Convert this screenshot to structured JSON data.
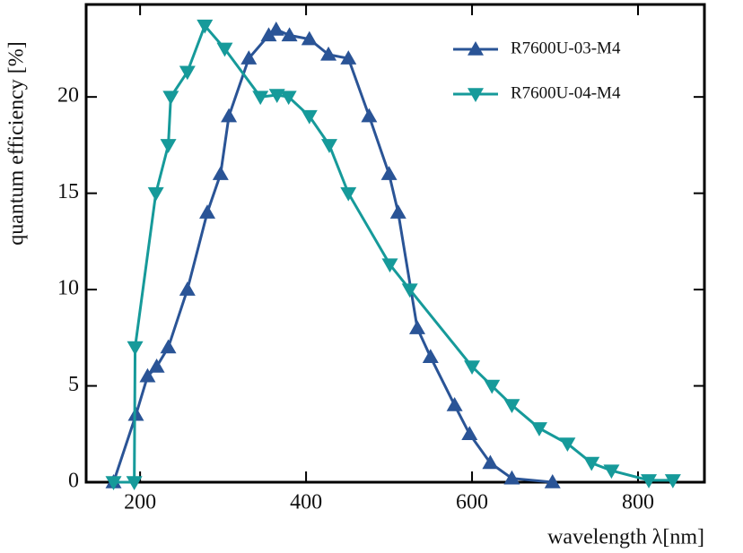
{
  "chart_data": {
    "type": "line",
    "xlabel": "wavelength λ[nm]",
    "ylabel": "quantum efficiency [%]",
    "xlim": [
      135,
      880
    ],
    "ylim": [
      0,
      24.8
    ],
    "xticks": [
      200,
      400,
      600,
      800
    ],
    "yticks": [
      0,
      5,
      10,
      15,
      20
    ],
    "legend": "upper right",
    "series": [
      {
        "name": "R7600U-03-M4",
        "color": "#2a5496",
        "marker": "triangle-up",
        "x": [
          168,
          195,
          209,
          220,
          234,
          257,
          281,
          297,
          307,
          331,
          355,
          364,
          380,
          404,
          427,
          451,
          476,
          500,
          511,
          534,
          550,
          579,
          597,
          622,
          648,
          697
        ],
        "values": [
          0,
          3.5,
          5.5,
          6,
          7,
          10,
          14,
          16,
          19,
          22,
          23.2,
          23.5,
          23.2,
          23,
          22.2,
          22,
          19,
          16,
          14,
          8,
          6.5,
          4,
          2.5,
          1,
          0.2,
          0
        ]
      },
      {
        "name": "R7600U-04-M4",
        "color": "#169a9a",
        "marker": "triangle-down",
        "x": [
          168,
          193,
          194,
          219,
          234,
          237,
          257,
          278,
          302,
          345,
          365,
          379,
          404,
          428,
          451,
          501,
          525,
          600,
          624,
          648,
          681,
          715,
          744,
          768,
          813,
          842
        ],
        "values": [
          0,
          0,
          7,
          15,
          17.5,
          20,
          21.3,
          23.7,
          22.5,
          20,
          20.1,
          20,
          19,
          17.5,
          15,
          11.3,
          10,
          6,
          5,
          4,
          2.8,
          2,
          1,
          0.6,
          0.1,
          0.1
        ]
      }
    ]
  }
}
